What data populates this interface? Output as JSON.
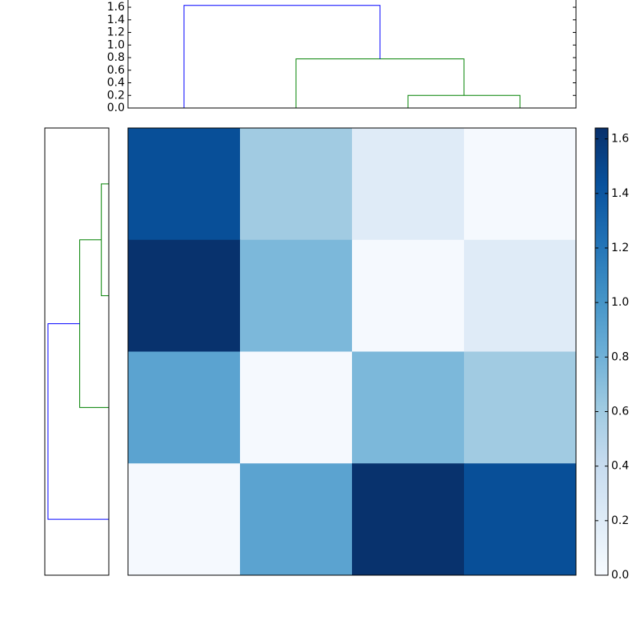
{
  "chart_data": {
    "type": "heatmap",
    "values": [
      [
        1.45,
        0.6,
        0.2,
        0.02
      ],
      [
        1.63,
        0.75,
        0.02,
        0.2
      ],
      [
        0.9,
        0.02,
        0.75,
        0.6
      ],
      [
        0.02,
        0.9,
        1.63,
        1.45
      ]
    ],
    "zlim": [
      0,
      1.64
    ],
    "colorbar_ticks": [
      {
        "value": 0,
        "label": "0.0"
      },
      {
        "value": 0.2,
        "label": "0.2"
      },
      {
        "value": 0.4,
        "label": "0.4"
      },
      {
        "value": 0.6,
        "label": "0.6"
      },
      {
        "value": 0.8,
        "label": "0.8"
      },
      {
        "value": 1.0,
        "label": "1.0"
      },
      {
        "value": 1.2,
        "label": "1.2"
      },
      {
        "value": 1.4,
        "label": "1.4"
      },
      {
        "value": 1.6,
        "label": "1.6"
      }
    ],
    "colormap": [
      "#f7fbff",
      "#deebf7",
      "#c6dbef",
      "#9ecae1",
      "#6baed6",
      "#4292c6",
      "#2171b5",
      "#08519c",
      "#08306b"
    ],
    "dendrogram": {
      "links": [
        {
          "children": [
            2,
            3
          ],
          "height": 0.2,
          "color": "#008000"
        },
        {
          "children": [
            1,
            4
          ],
          "height": 0.78,
          "color": "#008000"
        },
        {
          "children": [
            0,
            5
          ],
          "height": 1.63,
          "color": "#0000ff"
        }
      ],
      "ylim": [
        0,
        1.715
      ],
      "yticks": [
        {
          "value": 0,
          "label": "0.0"
        },
        {
          "value": 0.2,
          "label": "0.2"
        },
        {
          "value": 0.4,
          "label": "0.4"
        },
        {
          "value": 0.6,
          "label": "0.6"
        },
        {
          "value": 0.8,
          "label": "0.8"
        },
        {
          "value": 1.0,
          "label": "1.0"
        },
        {
          "value": 1.2,
          "label": "1.2"
        },
        {
          "value": 1.4,
          "label": "1.4"
        },
        {
          "value": 1.6,
          "label": "1.6"
        }
      ]
    }
  }
}
